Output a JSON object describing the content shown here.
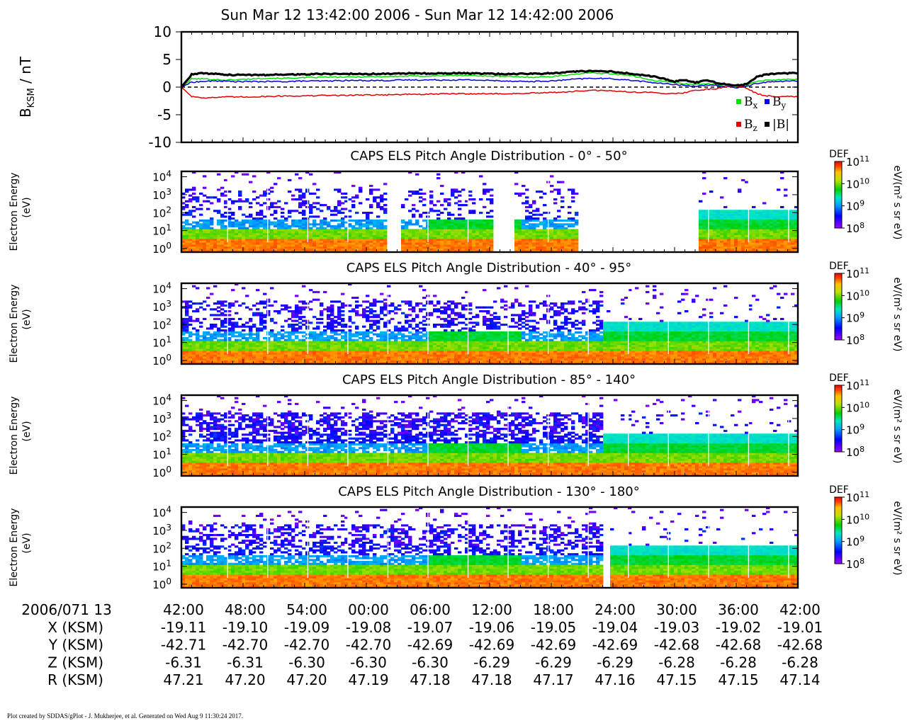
{
  "title": "Sun Mar 12 13:42:00 2006 - Sun Mar 12 14:42:00 2006",
  "footer": "Plot created by SDDAS/gPlot - J. Mukherjee, et al.  Generated on Wed Aug 9 11:30:24 2017.",
  "colors": {
    "bx": "#00e000",
    "by": "#0000e0",
    "bz": "#e00000",
    "bmag": "#000000"
  },
  "chart_data": [
    {
      "type": "line",
      "ylabel_main": "B",
      "ylabel_sub": "KSM",
      "ylabel_unit": " / nT",
      "ylim": [
        -10,
        10
      ],
      "yticks": [
        "10",
        "5",
        "0",
        "-5",
        "-10"
      ],
      "ytick_values": [
        10,
        5,
        0,
        -5,
        -10
      ],
      "zero_line": "dashed",
      "x_minutes": [
        0,
        1,
        2,
        3,
        4,
        5,
        6,
        8,
        10,
        12,
        14,
        16,
        18,
        20,
        22,
        24,
        26,
        28,
        30,
        32,
        34,
        36,
        38,
        40,
        42,
        44,
        46,
        47,
        48,
        49,
        50,
        51,
        52,
        53,
        54,
        55,
        56,
        57,
        58,
        59,
        60
      ],
      "series": [
        {
          "name": "Bx",
          "legend_main": "B",
          "legend_sub": "x",
          "color": "#00e000",
          "values": [
            0.0,
            1.5,
            1.5,
            1.4,
            1.3,
            1.3,
            1.4,
            1.6,
            1.6,
            1.7,
            1.8,
            1.8,
            1.9,
            1.9,
            2.0,
            2.0,
            2.1,
            2.1,
            2.0,
            1.9,
            1.8,
            1.9,
            2.3,
            2.6,
            2.4,
            2.0,
            1.2,
            1.0,
            0.8,
            0.6,
            0.5,
            0.6,
            0.5,
            0.4,
            0.1,
            0.3,
            1.0,
            1.3,
            1.3,
            1.4,
            1.4
          ]
        },
        {
          "name": "By",
          "legend_main": "B",
          "legend_sub": "y",
          "color": "#0000e0",
          "values": [
            0.0,
            0.9,
            1.0,
            1.1,
            1.1,
            1.0,
            1.0,
            1.0,
            1.0,
            1.1,
            1.1,
            1.2,
            1.2,
            1.2,
            1.3,
            1.3,
            1.3,
            1.3,
            1.2,
            1.1,
            1.0,
            1.1,
            1.4,
            1.6,
            1.5,
            1.2,
            0.8,
            0.6,
            0.5,
            0.3,
            0.2,
            0.3,
            0.3,
            0.1,
            -0.1,
            0.1,
            0.7,
            0.9,
            1.0,
            1.1,
            1.1
          ]
        },
        {
          "name": "Bz",
          "legend_main": "B",
          "legend_sub": "z",
          "color": "#e00000",
          "values": [
            0.0,
            -1.7,
            -1.9,
            -1.9,
            -1.8,
            -1.8,
            -1.8,
            -1.7,
            -1.6,
            -1.6,
            -1.5,
            -1.5,
            -1.4,
            -1.4,
            -1.3,
            -1.3,
            -1.2,
            -1.2,
            -1.2,
            -1.2,
            -1.1,
            -1.0,
            -0.8,
            -0.6,
            -0.7,
            -0.9,
            -1.0,
            -1.1,
            -1.2,
            -1.0,
            -0.6,
            -0.4,
            -0.3,
            0.1,
            0.3,
            -0.2,
            -1.2,
            -1.6,
            -1.7,
            -1.6,
            -1.8
          ]
        },
        {
          "name": "|B|",
          "legend_main": "|B|",
          "legend_sub": "",
          "color": "#000000",
          "values": [
            0.0,
            2.3,
            2.5,
            2.4,
            2.3,
            2.2,
            2.2,
            2.2,
            2.3,
            2.3,
            2.4,
            2.4,
            2.4,
            2.4,
            2.5,
            2.5,
            2.5,
            2.5,
            2.4,
            2.4,
            2.4,
            2.5,
            2.8,
            2.9,
            2.8,
            2.4,
            1.9,
            1.5,
            1.0,
            1.3,
            0.8,
            1.2,
            0.8,
            0.5,
            0.3,
            0.5,
            1.9,
            2.3,
            2.4,
            2.5,
            2.5
          ]
        }
      ]
    },
    {
      "type": "heatmap",
      "title": "CAPS ELS Pitch Angle Distribution - 0° - 50°",
      "ylabel": [
        "Electron Energy",
        "(eV)"
      ],
      "ytick_exponents": [
        0,
        1,
        2,
        3,
        4
      ],
      "scale": "log",
      "colorbar": {
        "label": "DEF",
        "unit": "eV/(m² s sr eV)",
        "exponents": [
          8,
          9,
          10,
          11
        ]
      },
      "data_gaps_minutes": [
        [
          20.1,
          21.3
        ],
        [
          30.5,
          32.3
        ],
        [
          38.7,
          50.4
        ]
      ],
      "upper_population": "sparse"
    },
    {
      "type": "heatmap",
      "title": "CAPS ELS Pitch Angle Distribution - 40° - 95°",
      "ylabel": [
        "Electron Energy",
        "(eV)"
      ],
      "ytick_exponents": [
        0,
        1,
        2,
        3,
        4
      ],
      "scale": "log",
      "colorbar": {
        "label": "DEF",
        "unit": "eV/(m² s sr eV)",
        "exponents": [
          8,
          9,
          10,
          11
        ]
      },
      "data_gaps_minutes": [],
      "upper_population": "moderate"
    },
    {
      "type": "heatmap",
      "title": "CAPS ELS Pitch Angle Distribution - 85° - 140°",
      "ylabel": [
        "Electron Energy",
        "(eV)"
      ],
      "ytick_exponents": [
        0,
        1,
        2,
        3,
        4
      ],
      "scale": "log",
      "colorbar": {
        "label": "DEF",
        "unit": "eV/(m² s sr eV)",
        "exponents": [
          8,
          9,
          10,
          11
        ]
      },
      "data_gaps_minutes": [],
      "upper_population": "dense"
    },
    {
      "type": "heatmap",
      "title": "CAPS ELS Pitch Angle Distribution - 130° - 180°",
      "ylabel": [
        "Electron Energy",
        "(eV)"
      ],
      "ytick_exponents": [
        0,
        1,
        2,
        3,
        4
      ],
      "scale": "log",
      "colorbar": {
        "label": "DEF",
        "unit": "eV/(m² s sr eV)",
        "exponents": [
          8,
          9,
          10,
          11
        ]
      },
      "data_gaps_minutes": [
        [
          41.0,
          41.6
        ]
      ],
      "upper_population": "blobs"
    }
  ],
  "axis": {
    "header": "2006/071 13",
    "ticks": [
      "42:00",
      "48:00",
      "54:00",
      "00:00",
      "06:00",
      "12:00",
      "18:00",
      "24:00",
      "30:00",
      "36:00",
      "42:00"
    ],
    "rows": [
      {
        "label": "X (KSM)",
        "values": [
          "-19.11",
          "-19.10",
          "-19.09",
          "-19.08",
          "-19.07",
          "-19.06",
          "-19.05",
          "-19.04",
          "-19.03",
          "-19.02",
          "-19.01"
        ]
      },
      {
        "label": "Y (KSM)",
        "values": [
          "-42.71",
          "-42.70",
          "-42.70",
          "-42.70",
          "-42.69",
          "-42.69",
          "-42.69",
          "-42.69",
          "-42.68",
          "-42.68",
          "-42.68"
        ]
      },
      {
        "label": "Z (KSM)",
        "values": [
          "-6.31",
          "-6.31",
          "-6.30",
          "-6.30",
          "-6.30",
          "-6.29",
          "-6.29",
          "-6.29",
          "-6.28",
          "-6.28",
          "-6.28"
        ]
      },
      {
        "label": "R (KSM)",
        "values": [
          "47.21",
          "47.20",
          "47.20",
          "47.19",
          "47.18",
          "47.18",
          "47.17",
          "47.16",
          "47.15",
          "47.15",
          "47.14"
        ]
      }
    ]
  }
}
